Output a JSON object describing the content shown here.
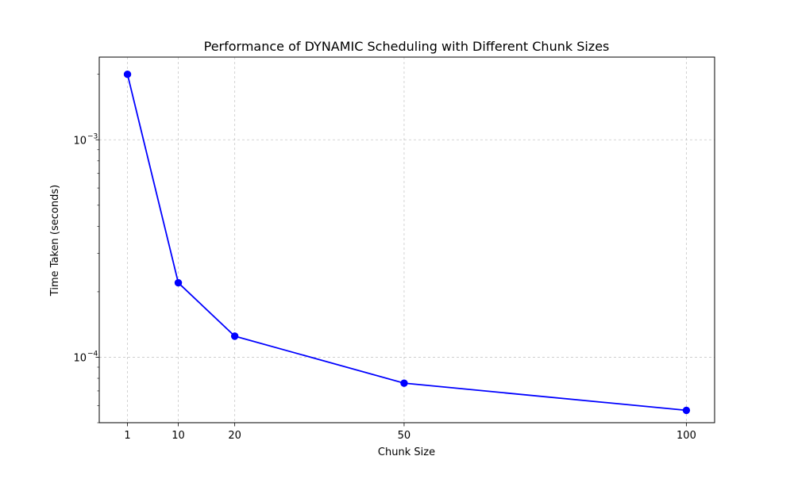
{
  "chart_data": {
    "type": "line",
    "title": "Performance of DYNAMIC Scheduling with Different Chunk Sizes",
    "xlabel": "Chunk Size",
    "ylabel": "Time Taken (seconds)",
    "x": [
      1,
      10,
      20,
      50,
      100
    ],
    "x_tick_labels": [
      "1",
      "10",
      "20",
      "50",
      "100"
    ],
    "xlim": [
      -4.0,
      105.0
    ],
    "y_scale": "log",
    "ylim": [
      5e-05,
      0.0024
    ],
    "y_major_ticks": [
      {
        "value": 0.001,
        "base": "10",
        "exponent": "−3"
      },
      {
        "value": 0.0001,
        "base": "10",
        "exponent": "−4"
      }
    ],
    "y_minor_ticks": [
      5e-05,
      6e-05,
      7e-05,
      8e-05,
      9e-05,
      0.0002,
      0.0003,
      0.0004,
      0.0005,
      0.0006,
      0.0007,
      0.0008,
      0.0009,
      0.002
    ],
    "grid": true,
    "series": [
      {
        "values": [
          0.002,
          0.00022,
          0.000125,
          7.6e-05,
          5.7e-05
        ],
        "color": "#0000ff",
        "marker": "circle"
      }
    ]
  }
}
